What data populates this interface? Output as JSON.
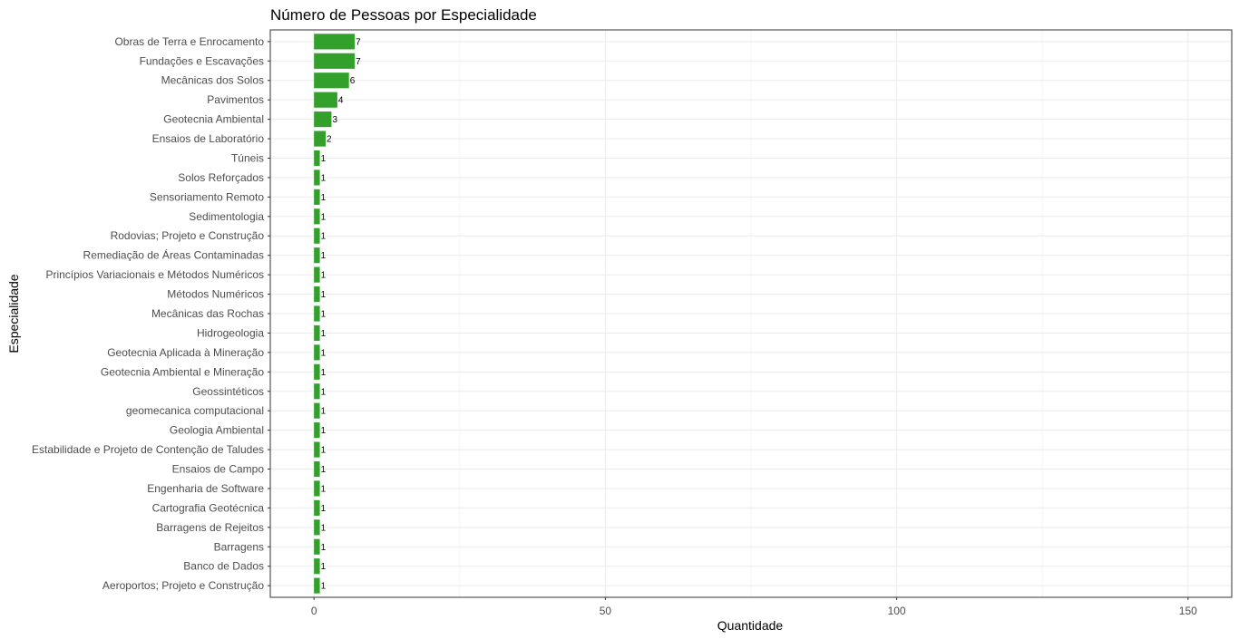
{
  "chart_data": {
    "type": "bar",
    "orientation": "horizontal",
    "title": "Número de Pessoas por Especialidade",
    "xlabel": "Quantidade",
    "ylabel": "Especialidade",
    "xlim": [
      -7.5,
      157.5
    ],
    "xticks": [
      0,
      50,
      100,
      150
    ],
    "xtick_labels": [
      "0",
      "50",
      "100",
      "150"
    ],
    "grid": true,
    "bar_color": "#33a02c",
    "categories": [
      "Obras de Terra e Enrocamento",
      "Fundações e Escavações",
      "Mecânicas dos Solos",
      "Pavimentos",
      "Geotecnia Ambiental",
      "Ensaios de Laboratório",
      "Túneis",
      "Solos Reforçados",
      "Sensoriamento Remoto",
      "Sedimentologia",
      "Rodovias; Projeto e Construção",
      "Remediação de Áreas Contaminadas",
      "Princípios Variacionais e Métodos Numéricos",
      "Métodos Numéricos",
      "Mecânicas das Rochas",
      "Hidrogeologia",
      "Geotecnia Aplicada à Mineração",
      "Geotecnia Ambiental e Mineração",
      "Geossintéticos",
      "geomecanica computacional",
      "Geologia Ambiental",
      "Estabilidade e Projeto de Contenção de Taludes",
      "Ensaios de Campo",
      "Engenharia de Software",
      "Cartografia Geotécnica",
      "Barragens de Rejeitos",
      "Barragens",
      "Banco de Dados",
      "Aeroportos; Projeto e Construção"
    ],
    "values": [
      7,
      7,
      6,
      4,
      3,
      2,
      1,
      1,
      1,
      1,
      1,
      1,
      1,
      1,
      1,
      1,
      1,
      1,
      1,
      1,
      1,
      1,
      1,
      1,
      1,
      1,
      1,
      1,
      1
    ]
  }
}
